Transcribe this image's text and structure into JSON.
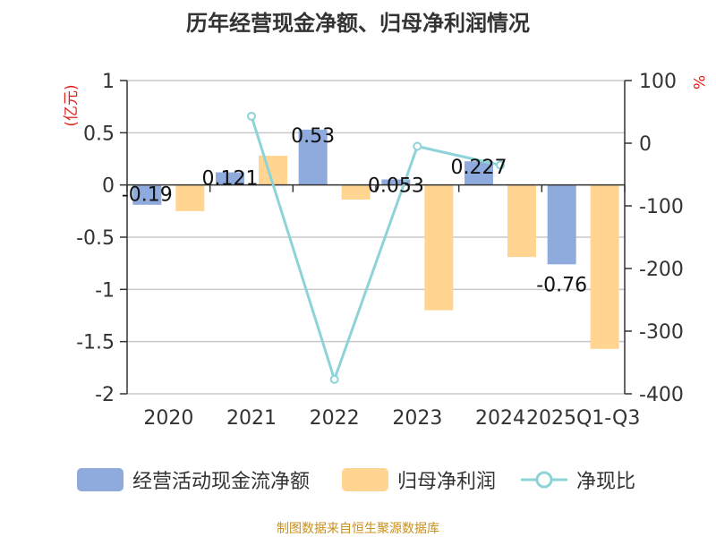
{
  "chart_data": {
    "type": "bar",
    "title": "历年经营现金净额、归母净利润情况",
    "categories": [
      "2020",
      "2021",
      "2022",
      "2023",
      "2024",
      "2025Q1-Q3"
    ],
    "y_left": {
      "label": "(亿元)",
      "range": [
        -2,
        1
      ],
      "ticks": [
        "1",
        "0.5",
        "0",
        "-0.5",
        "-1",
        "-1.5",
        "-2"
      ]
    },
    "y_right": {
      "label": "%",
      "range": [
        -400,
        100
      ],
      "ticks": [
        "100",
        "0",
        "-100",
        "-200",
        "-300",
        "-400"
      ]
    },
    "series": [
      {
        "name": "经营活动现金流净额",
        "type": "bar",
        "axis": "left",
        "color": "#8faadc",
        "values": [
          -0.19,
          0.121,
          0.53,
          0.053,
          0.227,
          -0.76
        ],
        "labels": [
          "-0.19",
          "0.121",
          "0.53",
          "0.053",
          "0.227",
          "-0.76"
        ]
      },
      {
        "name": "归母净利润",
        "type": "bar",
        "axis": "left",
        "color": "#ffd591",
        "values": [
          -0.25,
          0.28,
          -0.14,
          -1.2,
          -0.69,
          -1.57
        ]
      },
      {
        "name": "净现比",
        "type": "line",
        "axis": "right",
        "color": "#8dd3d8",
        "values": [
          null,
          43,
          -377,
          -5,
          -35,
          null
        ]
      }
    ]
  },
  "legend": {
    "item1": "经营活动现金流净额",
    "item2": "归母净利润",
    "item3": "净现比"
  },
  "source": "制图数据来自恒生聚源数据库"
}
